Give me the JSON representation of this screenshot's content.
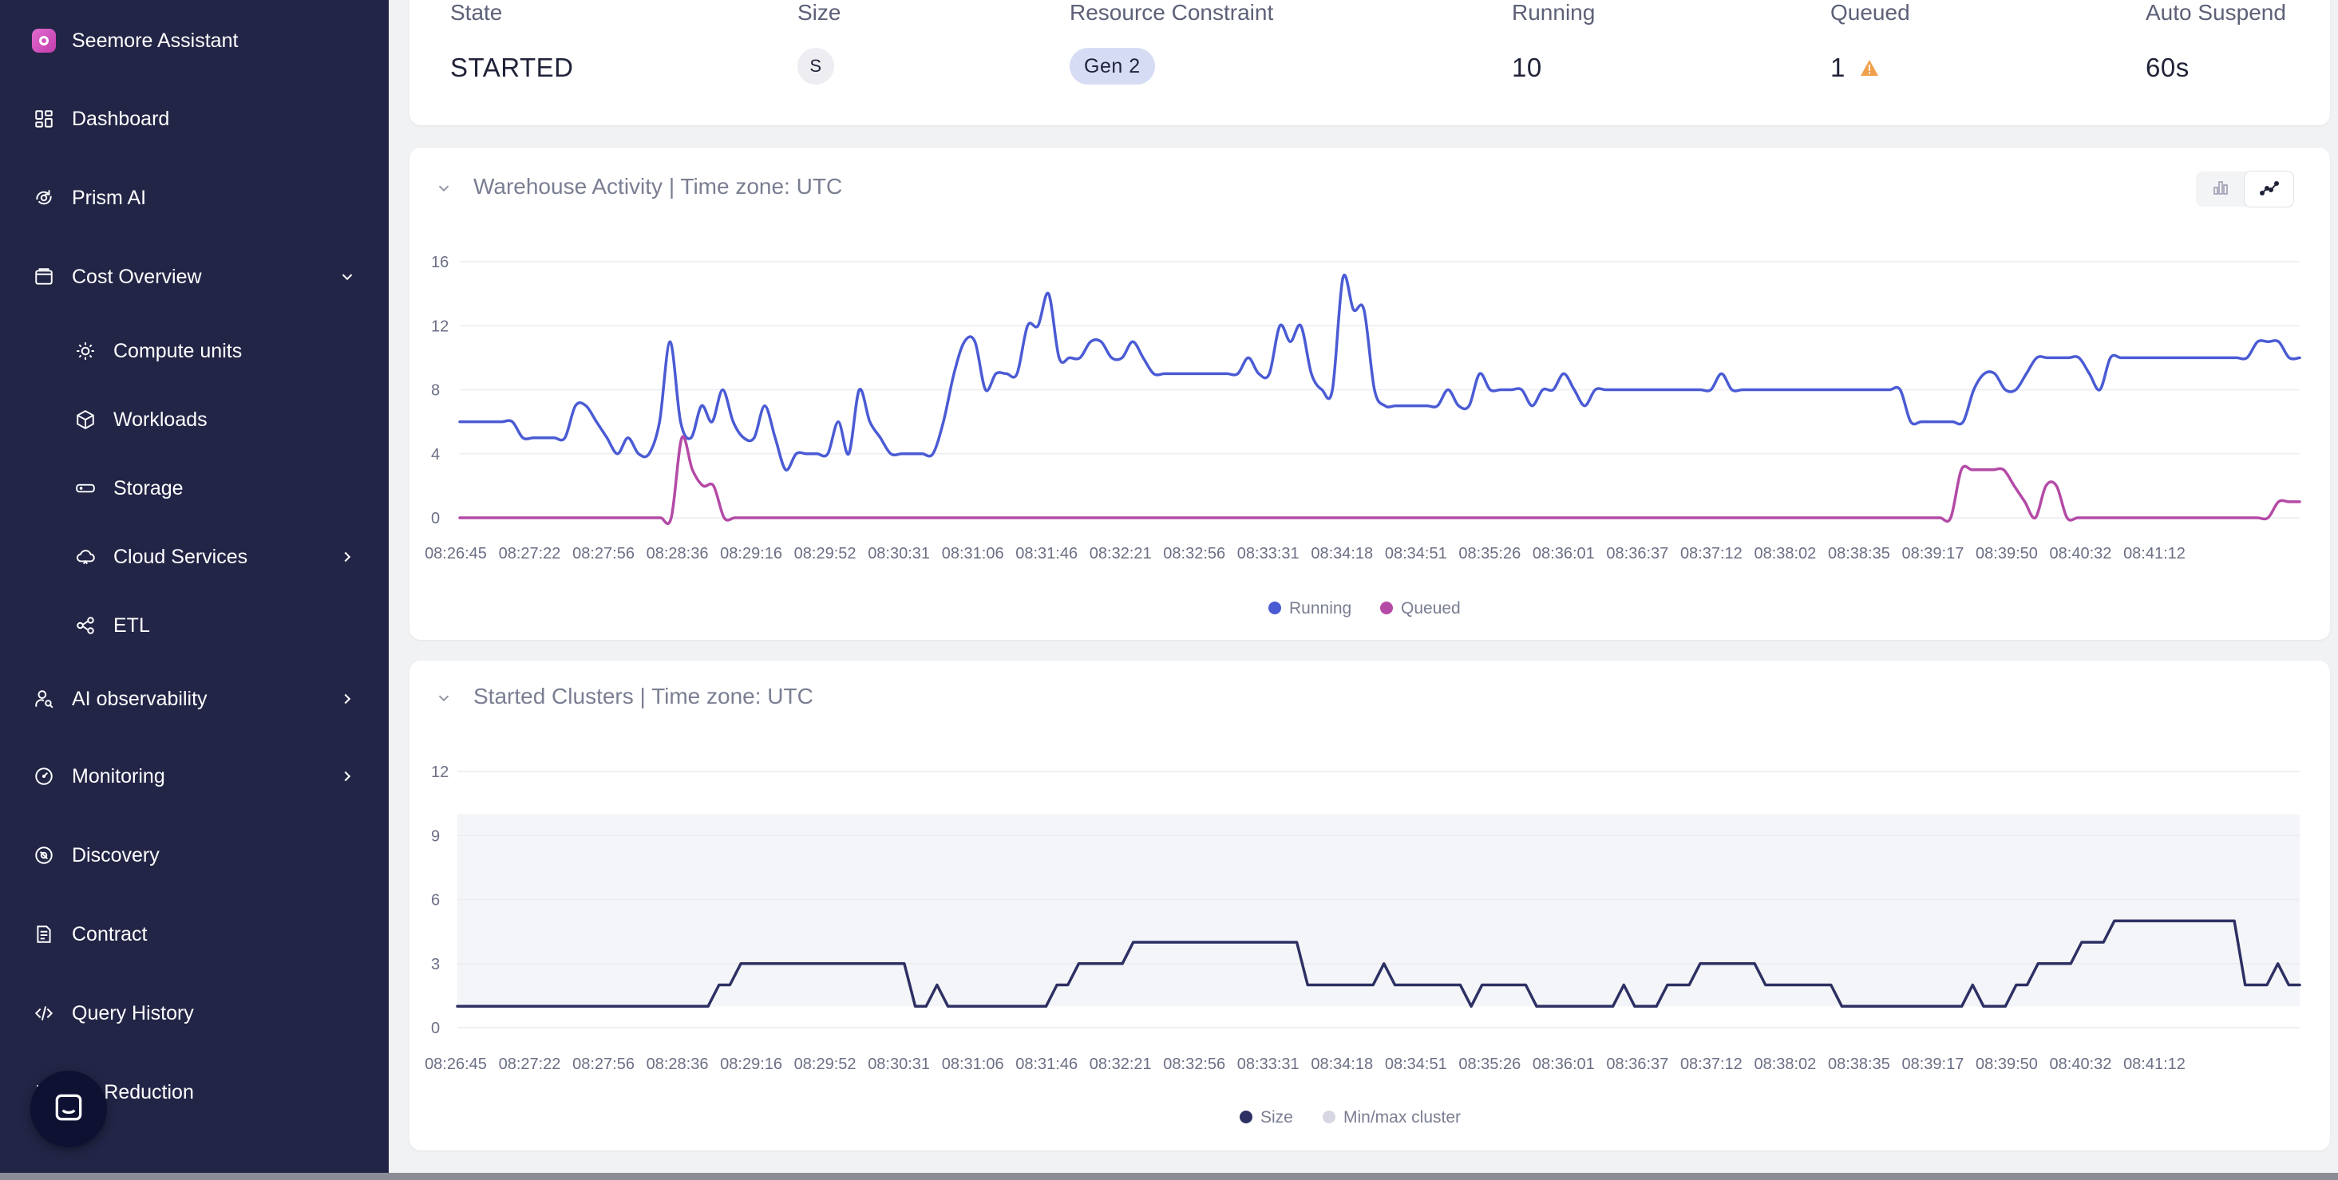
{
  "sidebar": {
    "brand": "Seemore Assistant",
    "items": [
      {
        "label": "Dashboard",
        "icon": "grid-icon"
      },
      {
        "label": "Prism AI",
        "icon": "prism-icon"
      },
      {
        "label": "Cost Overview",
        "icon": "wallet-icon"
      },
      {
        "label": "Compute units",
        "icon": "cpu-icon"
      },
      {
        "label": "Workloads",
        "icon": "cube-icon"
      },
      {
        "label": "Storage",
        "icon": "storage-icon"
      },
      {
        "label": "Cloud Services",
        "icon": "cloud-icon"
      },
      {
        "label": "ETL",
        "icon": "etl-icon"
      },
      {
        "label": "AI observability",
        "icon": "ai-observability-icon"
      },
      {
        "label": "Monitoring",
        "icon": "gauge-icon"
      },
      {
        "label": "Discovery",
        "icon": "discovery-icon"
      },
      {
        "label": "Contract",
        "icon": "contract-icon"
      },
      {
        "label": "Query History",
        "icon": "code-icon"
      },
      {
        "label": "ste Reduction",
        "icon": "reduction-icon"
      }
    ]
  },
  "warehouse_info": {
    "headers": {
      "state": "State",
      "size": "Size",
      "resource": "Resource Constraint",
      "running": "Running",
      "queued": "Queued",
      "auto_suspend": "Auto Suspend"
    },
    "values": {
      "state": "STARTED",
      "size": "S",
      "resource": "Gen 2",
      "running": "10",
      "queued": "1",
      "auto_suspend": "60s"
    },
    "queued_warning_color": "#f0a04b"
  },
  "activity_chart": {
    "title": "Warehouse Activity | Time zone: UTC"
  },
  "clusters_chart": {
    "title": "Started Clusters | Time zone: UTC"
  },
  "chart_data": [
    {
      "type": "line",
      "title": "Warehouse Activity | Time zone: UTC",
      "ylim": [
        0,
        16
      ],
      "yticks": [
        "0",
        "4",
        "8",
        "12",
        "16"
      ],
      "xticks": [
        "08:26:45",
        "08:27:22",
        "08:27:56",
        "08:28:36",
        "08:29:16",
        "08:29:52",
        "08:30:31",
        "08:31:06",
        "08:31:46",
        "08:32:21",
        "08:32:56",
        "08:33:31",
        "08:34:18",
        "08:34:51",
        "08:35:26",
        "08:36:01",
        "08:36:37",
        "08:37:12",
        "08:38:02",
        "08:38:35",
        "08:39:17",
        "08:39:50",
        "08:40:32",
        "08:41:12"
      ],
      "grid": true,
      "legend_position": "bottom-center",
      "series": [
        {
          "name": "Running",
          "color": "#4a5bd4",
          "values": [
            6,
            6,
            6,
            6,
            6,
            6,
            5,
            5,
            5,
            5,
            5,
            7,
            7,
            6,
            5,
            4,
            5,
            4,
            4,
            6,
            11,
            6,
            5,
            7,
            6,
            8,
            6,
            5,
            5,
            7,
            5,
            3,
            4,
            4,
            4,
            4,
            6,
            4,
            8,
            6,
            5,
            4,
            4,
            4,
            4,
            4,
            6,
            9,
            11,
            11,
            8,
            9,
            9,
            9,
            12,
            12,
            14,
            10,
            10,
            10,
            11,
            11,
            10,
            10,
            11,
            10,
            9,
            9,
            9,
            9,
            9,
            9,
            9,
            9,
            9,
            10,
            9,
            9,
            12,
            11,
            12,
            9,
            8,
            8,
            15,
            13,
            13,
            8,
            7,
            7,
            7,
            7,
            7,
            7,
            8,
            7,
            7,
            9,
            8,
            8,
            8,
            8,
            7,
            8,
            8,
            9,
            8,
            7,
            8,
            8,
            8,
            8,
            8,
            8,
            8,
            8,
            8,
            8,
            8,
            8,
            9,
            8,
            8,
            8,
            8,
            8,
            8,
            8,
            8,
            8,
            8,
            8,
            8,
            8,
            8,
            8,
            8,
            8,
            6,
            6,
            6,
            6,
            6,
            6,
            8,
            9,
            9,
            8,
            8,
            9,
            10,
            10,
            10,
            10,
            10,
            9,
            8,
            10,
            10,
            10,
            10,
            10,
            10,
            10,
            10,
            10,
            10,
            10,
            10,
            10,
            10,
            11,
            11,
            11,
            10,
            10
          ]
        },
        {
          "name": "Queued",
          "color": "#b44aa6",
          "values": [
            0,
            0,
            0,
            0,
            0,
            0,
            0,
            0,
            0,
            0,
            0,
            0,
            0,
            0,
            0,
            0,
            0,
            0,
            0,
            0,
            0,
            5,
            3,
            2,
            2,
            0,
            0,
            0,
            0,
            0,
            0,
            0,
            0,
            0,
            0,
            0,
            0,
            0,
            0,
            0,
            0,
            0,
            0,
            0,
            0,
            0,
            0,
            0,
            0,
            0,
            0,
            0,
            0,
            0,
            0,
            0,
            0,
            0,
            0,
            0,
            0,
            0,
            0,
            0,
            0,
            0,
            0,
            0,
            0,
            0,
            0,
            0,
            0,
            0,
            0,
            0,
            0,
            0,
            0,
            0,
            0,
            0,
            0,
            0,
            0,
            0,
            0,
            0,
            0,
            0,
            0,
            0,
            0,
            0,
            0,
            0,
            0,
            0,
            0,
            0,
            0,
            0,
            0,
            0,
            0,
            0,
            0,
            0,
            0,
            0,
            0,
            0,
            0,
            0,
            0,
            0,
            0,
            0,
            0,
            0,
            0,
            0,
            0,
            0,
            0,
            0,
            0,
            0,
            0,
            0,
            0,
            0,
            0,
            0,
            0,
            0,
            0,
            0,
            0,
            0,
            0,
            0,
            3,
            3,
            3,
            3,
            3,
            2,
            1,
            0,
            2,
            2,
            0,
            0,
            0,
            0,
            0,
            0,
            0,
            0,
            0,
            0,
            0,
            0,
            0,
            0,
            0,
            0,
            0,
            0,
            0,
            0,
            1,
            1,
            1
          ]
        }
      ]
    },
    {
      "type": "line",
      "title": "Started Clusters | Time zone: UTC",
      "ylim": [
        0,
        12
      ],
      "yticks": [
        "0",
        "3",
        "6",
        "9",
        "12"
      ],
      "xticks": [
        "08:26:45",
        "08:27:22",
        "08:27:56",
        "08:28:36",
        "08:29:16",
        "08:29:52",
        "08:30:31",
        "08:31:06",
        "08:31:46",
        "08:32:21",
        "08:32:56",
        "08:33:31",
        "08:34:18",
        "08:34:51",
        "08:35:26",
        "08:36:01",
        "08:36:37",
        "08:37:12",
        "08:38:02",
        "08:38:35",
        "08:39:17",
        "08:39:50",
        "08:40:32",
        "08:41:12"
      ],
      "grid": true,
      "legend_position": "bottom-center",
      "band": {
        "name": "Min/max cluster",
        "min": 1,
        "max": 10,
        "color": "#d6d7e2"
      },
      "series": [
        {
          "name": "Size",
          "color": "#2d3063",
          "values": [
            1,
            1,
            1,
            1,
            1,
            1,
            1,
            1,
            1,
            1,
            1,
            1,
            1,
            1,
            1,
            1,
            1,
            1,
            1,
            1,
            1,
            1,
            1,
            1,
            2,
            2,
            3,
            3,
            3,
            3,
            3,
            3,
            3,
            3,
            3,
            3,
            3,
            3,
            3,
            3,
            3,
            3,
            1,
            1,
            2,
            1,
            1,
            1,
            1,
            1,
            1,
            1,
            1,
            1,
            1,
            2,
            2,
            3,
            3,
            3,
            3,
            3,
            4,
            4,
            4,
            4,
            4,
            4,
            4,
            4,
            4,
            4,
            4,
            4,
            4,
            4,
            4,
            4,
            2,
            2,
            2,
            2,
            2,
            2,
            2,
            3,
            2,
            2,
            2,
            2,
            2,
            2,
            2,
            1,
            2,
            2,
            2,
            2,
            2,
            1,
            1,
            1,
            1,
            1,
            1,
            1,
            1,
            2,
            1,
            1,
            1,
            2,
            2,
            2,
            3,
            3,
            3,
            3,
            3,
            3,
            2,
            2,
            2,
            2,
            2,
            2,
            2,
            1,
            1,
            1,
            1,
            1,
            1,
            1,
            1,
            1,
            1,
            1,
            1,
            2,
            1,
            1,
            1,
            2,
            2,
            3,
            3,
            3,
            3,
            4,
            4,
            4,
            5,
            5,
            5,
            5,
            5,
            5,
            5,
            5,
            5,
            5,
            5,
            5,
            2,
            2,
            2,
            3,
            2,
            2
          ]
        }
      ]
    }
  ]
}
